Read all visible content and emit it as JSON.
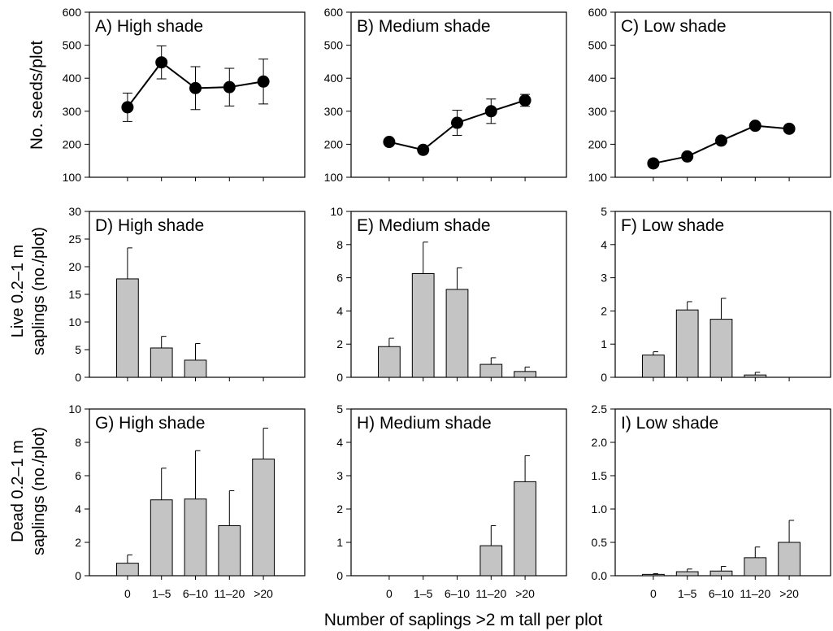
{
  "figure": {
    "xlabel": "Number of saplings >2 m tall per plot",
    "row_labels": [
      [
        "No. seeds/plot"
      ],
      [
        "Live 0.2–1 m",
        "saplings (no./plot)"
      ],
      [
        "Dead 0.2–1 m",
        "saplings (no./plot)"
      ]
    ]
  },
  "style": {
    "bar_fill": "#c4c4c4",
    "marker": "#000000",
    "line": "#000000"
  },
  "chart_data": [
    {
      "panel": "A",
      "type": "line",
      "title": "A) High shade",
      "categories": [
        "0",
        "1–5",
        "6–10",
        "11–20",
        ">20"
      ],
      "values": [
        312,
        448,
        370,
        373,
        390
      ],
      "err_up": [
        43,
        50,
        65,
        57,
        68
      ],
      "err_down": [
        43,
        50,
        65,
        57,
        68
      ],
      "ylim": [
        100,
        600
      ],
      "yticks": [
        100,
        200,
        300,
        400,
        500,
        600
      ],
      "ytick_labels": [
        "100",
        "200",
        "300",
        "400",
        "500",
        "600"
      ],
      "show_xticklabels": false
    },
    {
      "panel": "B",
      "type": "line",
      "title": "B) Medium shade",
      "categories": [
        "0",
        "1–5",
        "6–10",
        "11–20",
        ">20"
      ],
      "values": [
        207,
        183,
        265,
        300,
        333
      ],
      "err_up": [
        0,
        0,
        38,
        37,
        18
      ],
      "err_down": [
        0,
        0,
        38,
        37,
        18
      ],
      "ylim": [
        100,
        600
      ],
      "yticks": [
        100,
        200,
        300,
        400,
        500,
        600
      ],
      "ytick_labels": [
        "100",
        "200",
        "300",
        "400",
        "500",
        "600"
      ],
      "show_xticklabels": false
    },
    {
      "panel": "C",
      "type": "line",
      "title": "C) Low shade",
      "categories": [
        "0",
        "1–5",
        "6–10",
        "11–20",
        ">20"
      ],
      "values": [
        142,
        163,
        211,
        256,
        247
      ],
      "err_up": [
        0,
        0,
        0,
        0,
        0
      ],
      "err_down": [
        0,
        0,
        0,
        0,
        0
      ],
      "ylim": [
        100,
        600
      ],
      "yticks": [
        100,
        200,
        300,
        400,
        500,
        600
      ],
      "ytick_labels": [
        "100",
        "200",
        "300",
        "400",
        "500",
        "600"
      ],
      "show_xticklabels": false
    },
    {
      "panel": "D",
      "type": "bar",
      "title": "D) High shade",
      "categories": [
        "0",
        "1–5",
        "6–10",
        "11–20",
        ">20"
      ],
      "values": [
        17.8,
        5.3,
        3.1,
        0,
        0
      ],
      "err_up": [
        5.6,
        2.1,
        3.0,
        0,
        0
      ],
      "ylim": [
        0,
        30
      ],
      "yticks": [
        0,
        5,
        10,
        15,
        20,
        25,
        30
      ],
      "ytick_labels": [
        "0",
        "5",
        "10",
        "15",
        "20",
        "25",
        "30"
      ],
      "show_xticklabels": false
    },
    {
      "panel": "E",
      "type": "bar",
      "title": "E) Medium shade",
      "categories": [
        "0",
        "1–5",
        "6–10",
        "11–20",
        ">20"
      ],
      "values": [
        1.85,
        6.25,
        5.3,
        0.78,
        0.35
      ],
      "err_up": [
        0.5,
        1.9,
        1.3,
        0.4,
        0.27
      ],
      "ylim": [
        0,
        10
      ],
      "yticks": [
        0,
        2,
        4,
        6,
        8,
        10
      ],
      "ytick_labels": [
        "0",
        "2",
        "4",
        "6",
        "8",
        "10"
      ],
      "show_xticklabels": false
    },
    {
      "panel": "F",
      "type": "bar",
      "title": "F) Low shade",
      "categories": [
        "0",
        "1–5",
        "6–10",
        "11–20",
        ">20"
      ],
      "values": [
        0.67,
        2.03,
        1.75,
        0.07,
        0
      ],
      "err_up": [
        0.1,
        0.25,
        0.63,
        0.08,
        0
      ],
      "ylim": [
        0,
        5
      ],
      "yticks": [
        0,
        1,
        2,
        3,
        4,
        5
      ],
      "ytick_labels": [
        "0",
        "1",
        "2",
        "3",
        "4",
        "5"
      ],
      "show_xticklabels": false
    },
    {
      "panel": "G",
      "type": "bar",
      "title": "G) High shade",
      "categories": [
        "0",
        "1–5",
        "6–10",
        "11–20",
        ">20"
      ],
      "values": [
        0.75,
        4.55,
        4.6,
        3.0,
        7.0
      ],
      "err_up": [
        0.5,
        1.9,
        2.9,
        2.1,
        1.85
      ],
      "ylim": [
        0,
        10
      ],
      "yticks": [
        0,
        2,
        4,
        6,
        8,
        10
      ],
      "ytick_labels": [
        "0",
        "2",
        "4",
        "6",
        "8",
        "10"
      ],
      "show_xticklabels": true
    },
    {
      "panel": "H",
      "type": "bar",
      "title": "H) Medium shade",
      "categories": [
        "0",
        "1–5",
        "6–10",
        "11–20",
        ">20"
      ],
      "values": [
        0,
        0,
        0,
        0.9,
        2.82
      ],
      "err_up": [
        0,
        0,
        0,
        0.6,
        0.78
      ],
      "ylim": [
        0,
        5
      ],
      "yticks": [
        0,
        1,
        2,
        3,
        4,
        5
      ],
      "ytick_labels": [
        "0",
        "1",
        "2",
        "3",
        "4",
        "5"
      ],
      "show_xticklabels": true
    },
    {
      "panel": "I",
      "type": "bar",
      "title": "I) Low shade",
      "categories": [
        "0",
        "1–5",
        "6–10",
        "11–20",
        ">20"
      ],
      "values": [
        0.02,
        0.06,
        0.07,
        0.27,
        0.5
      ],
      "err_up": [
        0.01,
        0.04,
        0.07,
        0.16,
        0.33
      ],
      "ylim": [
        0,
        2.5
      ],
      "yticks": [
        0,
        0.5,
        1.0,
        1.5,
        2.0,
        2.5
      ],
      "ytick_labels": [
        "0.0",
        "0.5",
        "1.0",
        "1.5",
        "2.0",
        "2.5"
      ],
      "show_xticklabels": true
    }
  ]
}
